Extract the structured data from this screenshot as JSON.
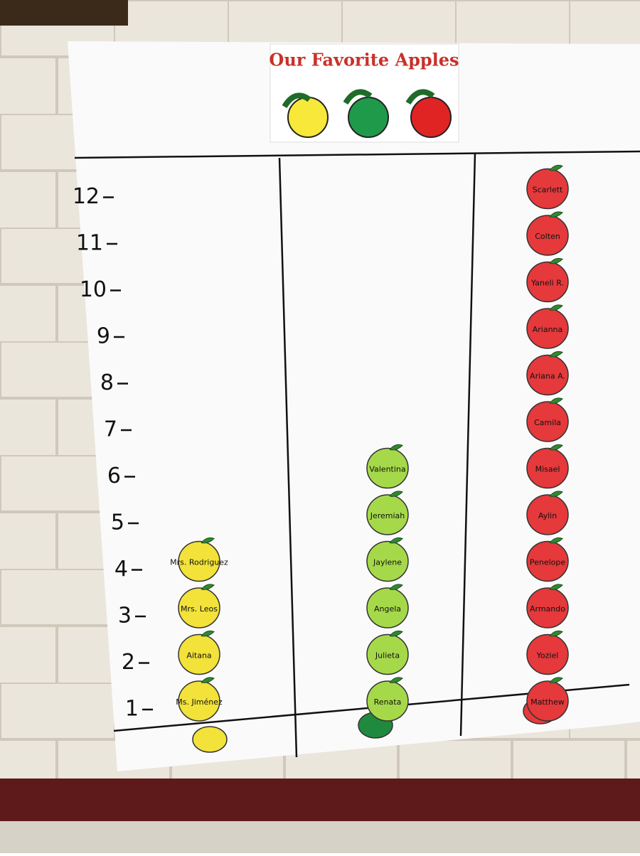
{
  "poster": {
    "title": "Our Favorite Apples",
    "axis_labels": [
      1,
      2,
      3,
      4,
      5,
      6,
      7,
      8,
      9,
      10,
      11,
      12
    ],
    "columns": [
      {
        "color": "#f2e23a",
        "names": [
          "Ms. Jiménez",
          "Aitana",
          "Mrs. Leos",
          "Mrs. Rodriguez"
        ]
      },
      {
        "color": "#a6d94a",
        "names": [
          "Renata",
          "Julieta",
          "Angela",
          "Jaylene",
          "Jeremiah",
          "Valentina"
        ]
      },
      {
        "color": "#e5393b",
        "names": [
          "Matthew",
          "Yoziel",
          "Armando",
          "Penelope",
          "Aylin",
          "Misael",
          "Camila",
          "Ariana A.",
          "Arianna",
          "Yaneli R.",
          "Colten",
          "Scarlett"
        ]
      }
    ]
  }
}
